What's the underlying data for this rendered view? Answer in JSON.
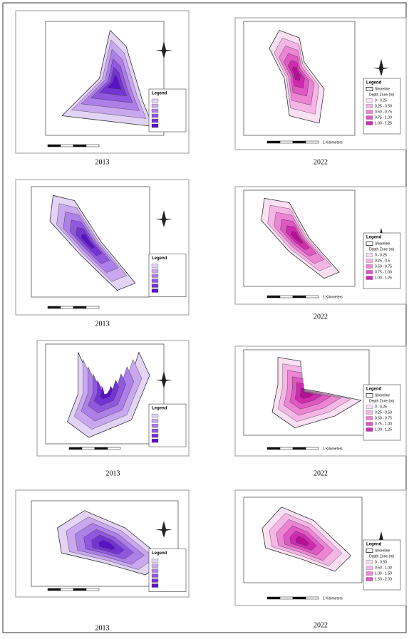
{
  "panels": [
    {
      "caption": "2013",
      "legend": {
        "title": "Legend",
        "items": []
      }
    },
    {
      "caption": "2022",
      "legend": {
        "title": "Legend",
        "shoreline": "Shoreline",
        "zone": "Depth Zone (m)",
        "items": [
          "0 - 0.25",
          "0.25 - 0.50",
          "0.50 - 0.75",
          "0.75 - 1.00",
          "1.00 - 1.25"
        ]
      },
      "scale": "1 Kilometers"
    },
    {
      "caption": "2013",
      "legend": {
        "title": "Legend",
        "items": []
      }
    },
    {
      "caption": "2022",
      "legend": {
        "title": "Legend",
        "shoreline": "Shoreline",
        "zone": "Depth Zone (m)",
        "items": [
          "0 - 0.25",
          "0.25 - 0.5",
          "0.50 - 0.75",
          "0.75 - 1.00",
          "1.00 - 1.25"
        ]
      },
      "scale": "1 Kilometers"
    },
    {
      "caption": "2013",
      "legend": {
        "title": "Legend",
        "items": []
      }
    },
    {
      "caption": "2022",
      "legend": {
        "title": "Legend",
        "shoreline": "Shoreline",
        "zone": "Depth Zone (m)",
        "items": [
          "0 - 0.25",
          "0.25 - 0.50",
          "0.50 - 0.75",
          "0.75 - 1.00",
          "1.00 - 1.25"
        ]
      },
      "scale": "1 Kilometers"
    },
    {
      "caption": "2013",
      "legend": {
        "title": "Legend",
        "items": []
      }
    },
    {
      "caption": "2022",
      "legend": {
        "title": "Legend",
        "shoreline": "Shoreline",
        "zone": "Depth Zone (m)",
        "items": [
          "0 - 0.50",
          "0.50 - 1.00",
          "1.00 - 1.50",
          "1.50 - 2.00"
        ]
      },
      "scale": "1 Kilometers"
    }
  ]
}
